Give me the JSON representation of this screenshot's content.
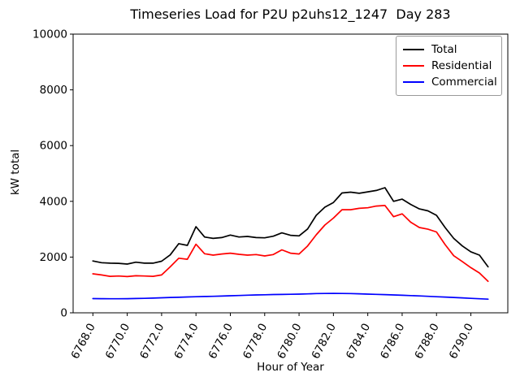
{
  "figure": {
    "background_color": "#ffffff",
    "axes_color": "#000000"
  },
  "chart_data": {
    "type": "line",
    "title": "Timeseries Load for P2U p2uhs12_1247  Day 283",
    "xlabel": "Hour of Year",
    "ylabel": "kW total",
    "xlim": [
      6766.85,
      6792.15
    ],
    "ylim": [
      0,
      10000
    ],
    "grid": false,
    "legend_position": "upper right",
    "x_ticks": [
      6768,
      6770,
      6772,
      6774,
      6776,
      6778,
      6780,
      6782,
      6784,
      6786,
      6788,
      6790
    ],
    "x_tick_labels": [
      "6768.0",
      "6770.0",
      "6772.0",
      "6774.0",
      "6776.0",
      "6778.0",
      "6780.0",
      "6782.0",
      "6784.0",
      "6786.0",
      "6788.0",
      "6790.0"
    ],
    "y_ticks": [
      0,
      2000,
      4000,
      6000,
      8000,
      10000
    ],
    "y_tick_labels": [
      "0",
      "2000",
      "4000",
      "6000",
      "8000",
      "10000"
    ],
    "x": [
      6768,
      6768.5,
      6769,
      6769.5,
      6770,
      6770.5,
      6771,
      6771.5,
      6772,
      6772.5,
      6773,
      6773.5,
      6774,
      6774.5,
      6775,
      6775.5,
      6776,
      6776.5,
      6777,
      6777.5,
      6778,
      6778.5,
      6779,
      6779.5,
      6780,
      6780.5,
      6781,
      6781.5,
      6782,
      6782.5,
      6783,
      6783.5,
      6784,
      6784.5,
      6785,
      6785.5,
      6786,
      6786.5,
      6787,
      6787.5,
      6788,
      6788.5,
      6789,
      6789.5,
      6790,
      6790.5,
      6791
    ],
    "series": [
      {
        "name": "Total",
        "color": "#000000",
        "values": [
          1860,
          1800,
          1780,
          1775,
          1750,
          1815,
          1780,
          1780,
          1850,
          2080,
          2480,
          2420,
          3090,
          2720,
          2670,
          2700,
          2790,
          2720,
          2740,
          2700,
          2690,
          2750,
          2870,
          2780,
          2760,
          3010,
          3500,
          3790,
          3960,
          4300,
          4330,
          4290,
          4340,
          4390,
          4490,
          4000,
          4080,
          3890,
          3730,
          3660,
          3500,
          3060,
          2670,
          2400,
          2190,
          2070,
          1650
        ]
      },
      {
        "name": "Residential",
        "color": "#ff0000",
        "values": [
          1400,
          1360,
          1310,
          1320,
          1300,
          1330,
          1320,
          1310,
          1360,
          1650,
          1960,
          1920,
          2460,
          2120,
          2070,
          2110,
          2140,
          2100,
          2070,
          2090,
          2040,
          2090,
          2260,
          2140,
          2110,
          2400,
          2800,
          3150,
          3400,
          3700,
          3700,
          3750,
          3770,
          3830,
          3850,
          3450,
          3550,
          3250,
          3060,
          3000,
          2900,
          2450,
          2050,
          1840,
          1620,
          1430,
          1130
        ]
      },
      {
        "name": "Commercial",
        "color": "#0000ff",
        "values": [
          510,
          508,
          505,
          505,
          508,
          512,
          518,
          528,
          540,
          550,
          558,
          568,
          578,
          585,
          592,
          600,
          612,
          622,
          632,
          640,
          648,
          655,
          660,
          665,
          672,
          680,
          690,
          695,
          698,
          695,
          690,
          682,
          672,
          662,
          652,
          642,
          630,
          618,
          605,
          592,
          578,
          565,
          550,
          535,
          520,
          505,
          490
        ]
      }
    ]
  },
  "legend": {
    "items": [
      {
        "label": "Total"
      },
      {
        "label": "Residential"
      },
      {
        "label": "Commercial"
      }
    ]
  }
}
